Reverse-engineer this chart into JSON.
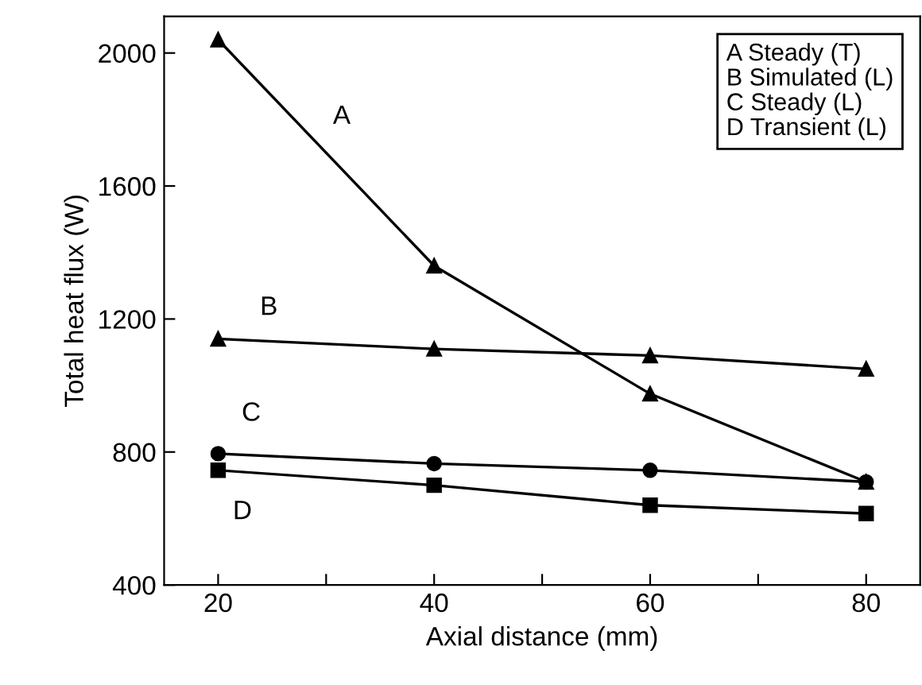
{
  "chart_data": {
    "type": "line",
    "xlabel": "Axial distance (mm)",
    "ylabel": "Total heat flux (W)",
    "x": [
      20,
      40,
      60,
      80
    ],
    "series": [
      {
        "name": "A",
        "color": "#000000",
        "values": [
          2040,
          1360,
          975,
          710
        ],
        "marker": "triangle"
      },
      {
        "name": "B",
        "color": "#000000",
        "values": [
          1140,
          1110,
          1090,
          1050
        ],
        "marker": "triangle"
      },
      {
        "name": "C",
        "color": "#000000",
        "values": [
          795,
          765,
          745,
          710
        ],
        "marker": "circle"
      },
      {
        "name": "D",
        "color": "#000000",
        "values": [
          745,
          700,
          640,
          615
        ],
        "marker": "square"
      }
    ],
    "annotations": [
      "A Steady (T)",
      "B Simulated (L)",
      "C Steady (L)",
      "D Transient (L)"
    ],
    "xlim": [
      15,
      85
    ],
    "ylim": [
      400,
      2110
    ],
    "xticks": [
      20,
      {
        "value": 30,
        "label": null
      },
      40,
      {
        "value": 50,
        "label": null
      },
      60,
      {
        "value": 70,
        "label": null
      },
      80
    ],
    "yticks": [
      400,
      800,
      1200,
      1600,
      2000
    ],
    "grid": false,
    "line_style": "solid"
  }
}
